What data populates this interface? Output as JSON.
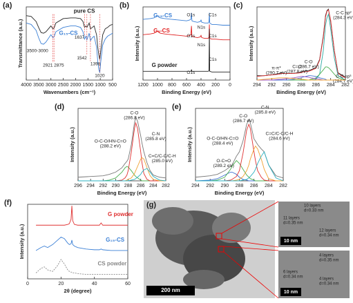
{
  "chart_data": [
    {
      "type": "line",
      "label": "(a)",
      "xlabel": "Wavenumbers (cm⁻¹)",
      "ylabel": "Transmittance (a.u.)",
      "xlim": [
        4000,
        500
      ],
      "xticks": [
        4000,
        3500,
        3000,
        2500,
        2000,
        1500,
        1000,
        500
      ],
      "ylim": [
        0,
        100
      ],
      "x": [
        4000,
        3800,
        3600,
        3500,
        3400,
        3300,
        3200,
        3000,
        2921,
        2875,
        2800,
        2500,
        2200,
        2000,
        1800,
        1700,
        1637,
        1580,
        1542,
        1450,
        1398,
        1320,
        1250,
        1150,
        1100,
        1060,
        1020,
        980,
        900,
        800,
        700,
        600,
        500
      ],
      "series": [
        {
          "name": "pure CS",
          "color": "#222222",
          "values": [
            88,
            87,
            80,
            72,
            65,
            64,
            66,
            74,
            70,
            71,
            78,
            84,
            85,
            85,
            84,
            80,
            72,
            74,
            72,
            78,
            70,
            72,
            74,
            62,
            45,
            35,
            28,
            40,
            62,
            70,
            72,
            75,
            76
          ]
        },
        {
          "name": "G₁₅-CS",
          "color": "#3a7fd5",
          "values": [
            78,
            76,
            68,
            58,
            50,
            49,
            52,
            62,
            58,
            59,
            66,
            72,
            74,
            74,
            72,
            66,
            56,
            60,
            55,
            64,
            54,
            58,
            60,
            45,
            25,
            15,
            10,
            25,
            48,
            56,
            60,
            62,
            64
          ]
        }
      ],
      "annotations": [
        "3500-3000"
      ],
      "peak_labels": [
        2921,
        2875,
        1637,
        1542,
        1398,
        1020
      ]
    },
    {
      "type": "line",
      "label": "(b)",
      "xlabel": "Binding Energy (eV)",
      "ylabel": "Intensity (a.u.)",
      "xlim": [
        1200,
        0
      ],
      "xticks": [
        1200,
        1000,
        800,
        600,
        400,
        200,
        0
      ],
      "ylim": [
        0,
        100
      ],
      "x": [
        1200,
        1100,
        1050,
        1000,
        980,
        960,
        900,
        800,
        700,
        600,
        560,
        540,
        532,
        525,
        500,
        450,
        410,
        400,
        390,
        350,
        300,
        290,
        285,
        280,
        250,
        200,
        100,
        0
      ],
      "series": [
        {
          "name": "G₁₅-CS",
          "color": "#3a7fd5",
          "values": [
            83,
            84,
            85,
            88,
            86,
            85,
            84,
            83,
            82,
            81,
            82,
            83,
            92,
            81,
            80,
            79,
            80,
            82,
            79,
            78,
            78,
            80,
            92,
            78,
            76,
            76,
            75,
            75
          ]
        },
        {
          "name": "G₅-CS",
          "color": "#e02020",
          "values": [
            62,
            63,
            64,
            67,
            65,
            64,
            63,
            62,
            61,
            60,
            61,
            62,
            74,
            60,
            59,
            58,
            59,
            61,
            58,
            57,
            57,
            59,
            76,
            57,
            56,
            56,
            55,
            55
          ]
        },
        {
          "name": "G powder",
          "color": "#222222",
          "values": [
            12,
            12,
            12,
            12,
            12,
            12,
            12,
            12,
            12,
            12,
            12,
            12,
            14,
            12,
            12,
            12,
            12,
            12,
            12,
            12,
            12,
            13,
            70,
            12,
            11,
            11,
            11,
            11
          ]
        }
      ],
      "annotations": [
        "O1s",
        "C1s",
        "N1s",
        "O1s",
        "N1s",
        "C1s",
        "O1s",
        "C1s"
      ]
    },
    {
      "type": "line",
      "label": "(c)",
      "xlabel": "Binding Energy (eV)",
      "ylabel": "Intensity (a.u.)",
      "xlim": [
        294,
        282
      ],
      "xticks": [
        294,
        292,
        290,
        288,
        286,
        284,
        282
      ],
      "ylim": [
        0,
        100
      ],
      "x": [
        294,
        293,
        292,
        291,
        290.7,
        290,
        289,
        288,
        287.8,
        287,
        286.7,
        286,
        285.5,
        285,
        284.7,
        284.5,
        284.3,
        284,
        283.5,
        283,
        282
      ],
      "series": [
        {
          "color": "#222222",
          "values": [
            6,
            6,
            7,
            9,
            10,
            9,
            9,
            11,
            12,
            13,
            14,
            17,
            28,
            60,
            88,
            95,
            97,
            80,
            40,
            10,
            4
          ]
        },
        {
          "color": "#e03030",
          "values": [
            5,
            6,
            7,
            8,
            9,
            9,
            9,
            10,
            11,
            12,
            13,
            16,
            27,
            58,
            86,
            94,
            96,
            82,
            40,
            9,
            3
          ]
        },
        {
          "name": "C-C sp²",
          "peak": "(284.3 eV)",
          "color": "#2aa8a0",
          "values": [
            0,
            0,
            0,
            0,
            0,
            0,
            0,
            0,
            0,
            0,
            0,
            1,
            8,
            40,
            75,
            85,
            90,
            70,
            30,
            6,
            0
          ]
        },
        {
          "name": "C-C sp³",
          "peak": "(284.7 eV)",
          "color": "#4caf50",
          "values": [
            0,
            0,
            0,
            0,
            0,
            0,
            0,
            0,
            0,
            0,
            1,
            3,
            8,
            14,
            18,
            18,
            17,
            14,
            8,
            3,
            0
          ]
        },
        {
          "name": "C-O",
          "peak": "(286.7 eV)",
          "color": "#3f6fd0",
          "values": [
            0,
            0,
            0,
            0,
            0,
            0,
            1,
            3,
            4,
            6,
            6,
            5,
            3,
            2,
            1,
            0,
            0,
            0,
            0,
            0,
            0
          ]
        },
        {
          "name": "C=O",
          "peak": "(287.8 eV)",
          "color": "#9b4fc0",
          "values": [
            0,
            0,
            0,
            1,
            1,
            2,
            3,
            5,
            5,
            4,
            3,
            2,
            1,
            0,
            0,
            0,
            0,
            0,
            0,
            0,
            0
          ]
        },
        {
          "name": "π-π*",
          "peak": "(290.7 eV)",
          "color": "#f0a030",
          "values": [
            0,
            1,
            2,
            3,
            3,
            3,
            2,
            1,
            1,
            0,
            0,
            0,
            0,
            0,
            0,
            0,
            0,
            0,
            0,
            0,
            0
          ]
        }
      ]
    },
    {
      "type": "line",
      "label": "(d)",
      "xlabel": "Binding Energy (eV)",
      "ylabel": "Intensity (a.u.)",
      "xlim": [
        296,
        282
      ],
      "xticks": [
        296,
        294,
        292,
        290,
        288,
        286,
        284,
        282
      ],
      "ylim": [
        0,
        100
      ],
      "x": [
        296,
        294,
        292,
        291,
        290,
        289,
        288.5,
        288.2,
        288,
        287.5,
        287,
        286.8,
        286.5,
        286,
        285.8,
        285.5,
        285,
        284.5,
        284,
        283,
        282
      ],
      "series": [
        {
          "color": "#777777",
          "values": [
            5,
            6,
            7,
            9,
            12,
            18,
            24,
            27,
            30,
            50,
            80,
            88,
            82,
            62,
            52,
            40,
            25,
            14,
            8,
            5,
            4
          ]
        },
        {
          "name": "O-C-O/HN-C=O",
          "peak": "(288.2 eV)",
          "color": "#4caf50",
          "values": [
            0,
            0,
            0,
            1,
            4,
            12,
            18,
            20,
            19,
            14,
            8,
            6,
            4,
            1,
            0,
            0,
            0,
            0,
            0,
            0,
            0
          ]
        },
        {
          "name": "C-O",
          "peak": "(286.8 eV)",
          "color": "#e03030",
          "values": [
            0,
            0,
            0,
            0,
            0,
            1,
            4,
            8,
            14,
            40,
            72,
            80,
            72,
            40,
            25,
            10,
            2,
            0,
            0,
            0,
            0
          ]
        },
        {
          "name": "C-N",
          "peak": "(285.8 eV)",
          "color": "#f0a030",
          "values": [
            0,
            0,
            0,
            0,
            0,
            0,
            0,
            1,
            2,
            4,
            10,
            14,
            20,
            30,
            32,
            30,
            18,
            7,
            2,
            0,
            0
          ]
        },
        {
          "name": "C=C/C-C/C-H",
          "peak": "(285.0 eV)",
          "color": "#2ab0c0",
          "values": [
            0,
            0,
            0,
            0,
            0,
            0,
            0,
            0,
            0,
            1,
            2,
            3,
            5,
            9,
            12,
            15,
            17,
            12,
            6,
            1,
            0
          ]
        }
      ]
    },
    {
      "type": "line",
      "label": "(e)",
      "xlabel": "Binding Energy (eV)",
      "ylabel": "Intensity (a.u.)",
      "xlim": [
        294,
        282
      ],
      "xticks": [
        294,
        292,
        290,
        288,
        286,
        284,
        282
      ],
      "ylim": [
        0,
        100
      ],
      "x": [
        294,
        292,
        291,
        290,
        289.2,
        289,
        288.4,
        288,
        287.5,
        287,
        286.7,
        286.5,
        286,
        285.8,
        285.5,
        285,
        284.6,
        284,
        283,
        282
      ],
      "series": [
        {
          "color": "#777777",
          "values": [
            5,
            7,
            9,
            14,
            20,
            22,
            34,
            40,
            55,
            78,
            85,
            80,
            58,
            55,
            50,
            44,
            40,
            22,
            7,
            4
          ]
        },
        {
          "name": "O-C=O",
          "peak": "(289.2 eV)",
          "color": "#3f6fd0",
          "values": [
            0,
            1,
            3,
            8,
            12,
            12,
            9,
            5,
            2,
            1,
            0,
            0,
            0,
            0,
            0,
            0,
            0,
            0,
            0,
            0
          ]
        },
        {
          "name": "O-C-O/HN-C=O",
          "peak": "(288.4 eV)",
          "color": "#4caf50",
          "values": [
            0,
            0,
            1,
            5,
            16,
            20,
            28,
            24,
            16,
            8,
            5,
            3,
            1,
            0,
            0,
            0,
            0,
            0,
            0,
            0
          ]
        },
        {
          "name": "C-O",
          "peak": "(286.7 eV)",
          "color": "#e03030",
          "values": [
            0,
            0,
            0,
            0,
            1,
            2,
            6,
            14,
            38,
            70,
            78,
            72,
            40,
            28,
            14,
            5,
            1,
            0,
            0,
            0
          ]
        },
        {
          "name": "C-N",
          "peak": "(285.8 eV)",
          "color": "#f0a030",
          "values": [
            0,
            0,
            0,
            0,
            0,
            0,
            1,
            2,
            6,
            14,
            22,
            30,
            44,
            48,
            44,
            30,
            16,
            3,
            0,
            0
          ]
        },
        {
          "name": "C=C/C-C/C-H",
          "peak": "(284.6 eV)",
          "color": "#2ab0c0",
          "values": [
            0,
            0,
            0,
            0,
            0,
            0,
            0,
            0,
            1,
            2,
            4,
            6,
            12,
            16,
            24,
            34,
            40,
            22,
            4,
            0
          ]
        }
      ]
    },
    {
      "type": "line",
      "label": "(f)",
      "xlabel": "2θ (degree)",
      "ylabel": "Intensity (a.u.)",
      "xlim": [
        0,
        60
      ],
      "xticks": [
        0,
        20,
        40,
        60
      ],
      "ylim": [
        0,
        100
      ],
      "x": [
        5,
        8,
        10,
        12,
        15,
        18,
        20,
        22,
        24,
        25,
        26,
        26.5,
        27,
        28,
        30,
        35,
        40,
        43,
        44,
        45,
        50,
        55,
        60
      ],
      "series": [
        {
          "name": "G powder",
          "color": "#e03030",
          "values": [
            72,
            72,
            72,
            72,
            72,
            72,
            72,
            72,
            73,
            74,
            80,
            98,
            78,
            73,
            72,
            72,
            72,
            72,
            75,
            72,
            72,
            72,
            72
          ]
        },
        {
          "name": "G₁₅-CS",
          "color": "#3a7fd5",
          "values": [
            38,
            42,
            44,
            42,
            46,
            52,
            56,
            54,
            48,
            46,
            47,
            52,
            46,
            44,
            42,
            40,
            39,
            39,
            40,
            39,
            38,
            38,
            38
          ]
        },
        {
          "name": "CS powder",
          "color": "#888888",
          "dashed": true,
          "values": [
            8,
            14,
            16,
            12,
            10,
            18,
            26,
            20,
            12,
            10,
            9,
            9,
            8,
            8,
            7,
            6,
            6,
            6,
            6,
            6,
            6,
            6,
            6
          ]
        }
      ]
    }
  ],
  "panel_g": {
    "label": "(g)",
    "scale_bars": [
      "200 nm",
      "10 nm",
      "10 nm"
    ],
    "annotations": [
      "10 layers",
      "d=0.33 nm",
      "11 layers",
      "d=0.35 nm",
      "12 layers",
      "d=0.34 nm",
      "4 layers",
      "d=0.35 nm",
      "6 layers",
      "d=0.34 nm",
      "4 layers",
      "d=0.34 nm"
    ]
  }
}
